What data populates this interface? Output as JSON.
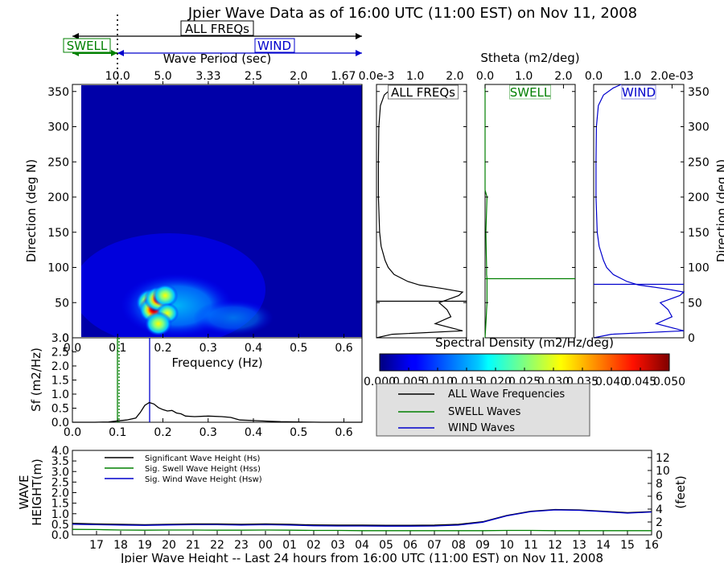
{
  "title": "Jpier Wave Data as of 16:00 UTC (11:00 EST) on Nov 11, 2008",
  "bands": {
    "all_label": "ALL FREQs",
    "swell_label": "SWELL",
    "wind_label": "WIND",
    "period_axis_label": "Wave Period (sec)",
    "period_ticks": [
      "10.0",
      "5.0",
      "3.33",
      "2.5",
      "2.0",
      "1.67"
    ],
    "colors": {
      "all": "#000000",
      "swell": "#008000",
      "wind": "#0000cc"
    }
  },
  "chart_data": [
    {
      "id": "directional-spectrum",
      "type": "heatmap",
      "xlabel": "Frequency (Hz)",
      "ylabel": "Direction (deg N)",
      "xlim": [
        0.0,
        0.64
      ],
      "ylim": [
        0,
        360
      ],
      "xticks": [
        "0.0",
        "0.1",
        "0.2",
        "0.3",
        "0.4",
        "0.5",
        "0.6"
      ],
      "yticks": [
        "0",
        "50",
        "100",
        "150",
        "200",
        "250",
        "300",
        "350"
      ],
      "swell_cutoff_hz": 0.1,
      "wind_peak_hz": 0.17,
      "colorbar": {
        "label": "Spectral Density (m2/Hz/deg)",
        "range": [
          0.0,
          0.05
        ],
        "ticks": [
          "0.000",
          "0.005",
          "0.010",
          "0.015",
          "0.020",
          "0.025",
          "0.030",
          "0.035",
          "0.040",
          "0.045",
          "0.050"
        ]
      },
      "hotspots": [
        {
          "freq": 0.175,
          "dir": 50,
          "value": 0.05
        },
        {
          "freq": 0.18,
          "dir": 40,
          "value": 0.045
        },
        {
          "freq": 0.19,
          "dir": 55,
          "value": 0.04
        },
        {
          "freq": 0.205,
          "dir": 60,
          "value": 0.03
        },
        {
          "freq": 0.21,
          "dir": 35,
          "value": 0.02
        },
        {
          "freq": 0.19,
          "dir": 20,
          "value": 0.035
        }
      ]
    },
    {
      "id": "frequency-spectrum",
      "type": "line",
      "xlabel": "Frequency (Hz)",
      "ylabel": "Sf (m2/Hz)",
      "xlim": [
        0.0,
        0.64
      ],
      "ylim": [
        0.0,
        3.0
      ],
      "xticks": [
        "0.0",
        "0.1",
        "0.2",
        "0.3",
        "0.4",
        "0.5",
        "0.6"
      ],
      "yticks": [
        "0.0",
        "0.5",
        "1.0",
        "1.5",
        "2.0",
        "2.5",
        "3.0"
      ],
      "x": [
        0.0,
        0.05,
        0.08,
        0.1,
        0.12,
        0.14,
        0.15,
        0.16,
        0.17,
        0.18,
        0.19,
        0.2,
        0.21,
        0.22,
        0.23,
        0.24,
        0.25,
        0.27,
        0.3,
        0.33,
        0.35,
        0.37,
        0.4,
        0.43,
        0.46,
        0.5,
        0.55,
        0.6,
        0.64
      ],
      "series": [
        {
          "name": "ALL Wave Frequencies",
          "values": [
            0.0,
            0.0,
            0.01,
            0.05,
            0.08,
            0.15,
            0.35,
            0.6,
            0.7,
            0.65,
            0.52,
            0.45,
            0.4,
            0.42,
            0.33,
            0.3,
            0.22,
            0.2,
            0.22,
            0.2,
            0.17,
            0.08,
            0.06,
            0.04,
            0.02,
            0.01,
            0.0,
            0.0,
            0.0
          ]
        }
      ],
      "legend": {
        "placement": "right",
        "entries": [
          "ALL Wave Frequencies",
          "SWELL Waves",
          "WIND Waves"
        ]
      }
    },
    {
      "id": "stheta-panels",
      "type": "line",
      "xlabel": "Stheta (m2/deg)",
      "ylabel": "Direction (deg N)",
      "ylim": [
        0,
        360
      ],
      "yticks": [
        "0",
        "50",
        "100",
        "150",
        "200",
        "250",
        "300",
        "350"
      ],
      "panels": [
        {
          "name": "ALL FREQs",
          "xticks": [
            "0.0e-3",
            "1.0",
            "2.0"
          ],
          "peak_dir": 52,
          "dir": [
            0,
            5,
            10,
            20,
            30,
            40,
            50,
            60,
            65,
            70,
            75,
            80,
            90,
            100,
            110,
            130,
            150,
            200,
            250,
            300,
            330,
            345,
            355,
            360
          ],
          "values": [
            0.0,
            0.4,
            2.2,
            1.5,
            1.9,
            1.8,
            1.6,
            2.1,
            2.2,
            1.7,
            1.1,
            0.8,
            0.45,
            0.3,
            0.22,
            0.12,
            0.08,
            0.05,
            0.05,
            0.06,
            0.1,
            0.2,
            0.4,
            0.6
          ]
        },
        {
          "name": "SWELL",
          "xticks": [
            "0.0",
            "1.0",
            "2.0"
          ],
          "peak_dir": 84,
          "dir": [
            0,
            10,
            20,
            30,
            40,
            50,
            60,
            70,
            80,
            84,
            90,
            100,
            120,
            150,
            200,
            210,
            250,
            300,
            360
          ],
          "values": [
            0.0,
            0.01,
            0.02,
            0.03,
            0.04,
            0.05,
            0.05,
            0.05,
            0.05,
            0.05,
            0.04,
            0.04,
            0.03,
            0.02,
            0.05,
            0.0,
            0.0,
            0.0,
            0.0
          ]
        },
        {
          "name": "WIND",
          "xticks": [
            "0.0",
            "1.0",
            "2.0e-03"
          ],
          "peak_dir": 76,
          "dir": [
            0,
            5,
            10,
            20,
            30,
            40,
            50,
            60,
            65,
            70,
            75,
            80,
            90,
            100,
            110,
            130,
            150,
            200,
            250,
            300,
            330,
            345,
            355,
            360
          ],
          "values": [
            0.0,
            0.45,
            2.3,
            1.6,
            2.0,
            1.9,
            1.7,
            2.2,
            2.3,
            1.8,
            1.15,
            0.85,
            0.5,
            0.33,
            0.25,
            0.14,
            0.09,
            0.06,
            0.06,
            0.07,
            0.12,
            0.25,
            0.5,
            0.7
          ]
        }
      ]
    },
    {
      "id": "wave-height-24h",
      "type": "line",
      "title": "Jpier Wave Height -- Last 24 hours from 16:00 UTC (11:00 EST) on Nov 11, 2008",
      "ylabel": "WAVE HEIGHT(m)",
      "ylabel_lines": [
        "WAVE",
        "HEIGHT(m)"
      ],
      "y2label": "(feet)",
      "ylim": [
        0.0,
        4.0
      ],
      "y2lim": [
        0,
        13.12
      ],
      "yticks": [
        "0.0",
        "0.5",
        "1.0",
        "1.5",
        "2.0",
        "2.5",
        "3.0",
        "3.5",
        "4.0"
      ],
      "y2ticks": [
        "0",
        "2",
        "4",
        "6",
        "8",
        "10",
        "12"
      ],
      "categories": [
        "17",
        "18",
        "19",
        "20",
        "21",
        "22",
        "23",
        "00",
        "01",
        "02",
        "03",
        "04",
        "05",
        "06",
        "07",
        "08",
        "09",
        "10",
        "11",
        "12",
        "13",
        "14",
        "15",
        "16"
      ],
      "x": [
        16,
        17,
        18,
        19,
        20,
        21,
        22,
        23,
        24,
        25,
        26,
        27,
        28,
        29,
        30,
        31,
        32,
        33,
        34,
        35,
        36,
        37,
        38,
        39,
        40
      ],
      "series": [
        {
          "name": "Significant Wave Height (Hs)",
          "values": [
            0.55,
            0.52,
            0.5,
            0.48,
            0.5,
            0.52,
            0.52,
            0.5,
            0.52,
            0.5,
            0.47,
            0.46,
            0.46,
            0.45,
            0.45,
            0.46,
            0.5,
            0.62,
            0.92,
            1.12,
            1.2,
            1.18,
            1.12,
            1.05,
            1.1
          ]
        },
        {
          "name": "Sig. Swell Wave Height (Hss)",
          "values": [
            0.26,
            0.25,
            0.23,
            0.22,
            0.23,
            0.23,
            0.22,
            0.22,
            0.23,
            0.22,
            0.21,
            0.21,
            0.2,
            0.2,
            0.2,
            0.2,
            0.2,
            0.2,
            0.21,
            0.21,
            0.2,
            0.2,
            0.2,
            0.2,
            0.2
          ]
        },
        {
          "name": "Sig. Wind Wave Height (Hsw)",
          "values": [
            0.5,
            0.48,
            0.46,
            0.45,
            0.47,
            0.48,
            0.48,
            0.46,
            0.48,
            0.46,
            0.43,
            0.42,
            0.42,
            0.41,
            0.41,
            0.42,
            0.46,
            0.6,
            0.9,
            1.1,
            1.18,
            1.16,
            1.1,
            1.03,
            1.08
          ]
        }
      ],
      "legend": {
        "placement": "top-left"
      }
    }
  ]
}
